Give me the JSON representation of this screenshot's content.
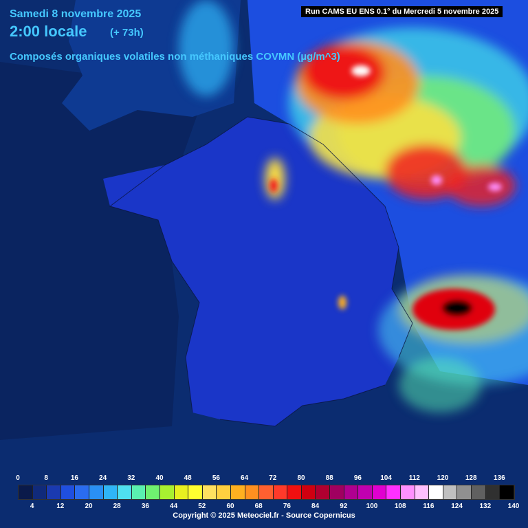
{
  "header": {
    "date": "Samedi 8 novembre 2025",
    "time": "2:00 locale",
    "lead": "(+ 73h)",
    "parameter": "Composés organiques volatiles non méthaniques COVMN (µg/m^3)",
    "run": "Run CAMS EU ENS 0.1° du Mercredi 5 novembre 2025"
  },
  "legend": {
    "top_ticks": [
      "0",
      "8",
      "16",
      "24",
      "32",
      "40",
      "48",
      "56",
      "64",
      "72",
      "80",
      "88",
      "96",
      "104",
      "112",
      "120",
      "128",
      "136"
    ],
    "bottom_ticks": [
      "4",
      "12",
      "20",
      "28",
      "36",
      "44",
      "52",
      "60",
      "68",
      "76",
      "84",
      "92",
      "100",
      "108",
      "116",
      "124",
      "132",
      "140"
    ],
    "colors": [
      "#0a1a4a",
      "#102a7a",
      "#1a3ab0",
      "#1f4fe0",
      "#2a6cf0",
      "#2a90f5",
      "#2fb5f7",
      "#4fe0f0",
      "#5af0b0",
      "#6ff070",
      "#a8f030",
      "#e8f020",
      "#ffff30",
      "#ffe060",
      "#ffd040",
      "#ffb020",
      "#ff9020",
      "#ff6030",
      "#ff3a2a",
      "#f01010",
      "#d00010",
      "#b00030",
      "#a00060",
      "#b00090",
      "#c000b0",
      "#e000d0",
      "#ff30ff",
      "#ff90ff",
      "#ffc0ff",
      "#ffffff",
      "#c0c0c0",
      "#909090",
      "#606060",
      "#303030",
      "#000000"
    ]
  },
  "footer": {
    "copyright": "Copyright © 2025 Meteociel.fr - Source Copernicus"
  }
}
